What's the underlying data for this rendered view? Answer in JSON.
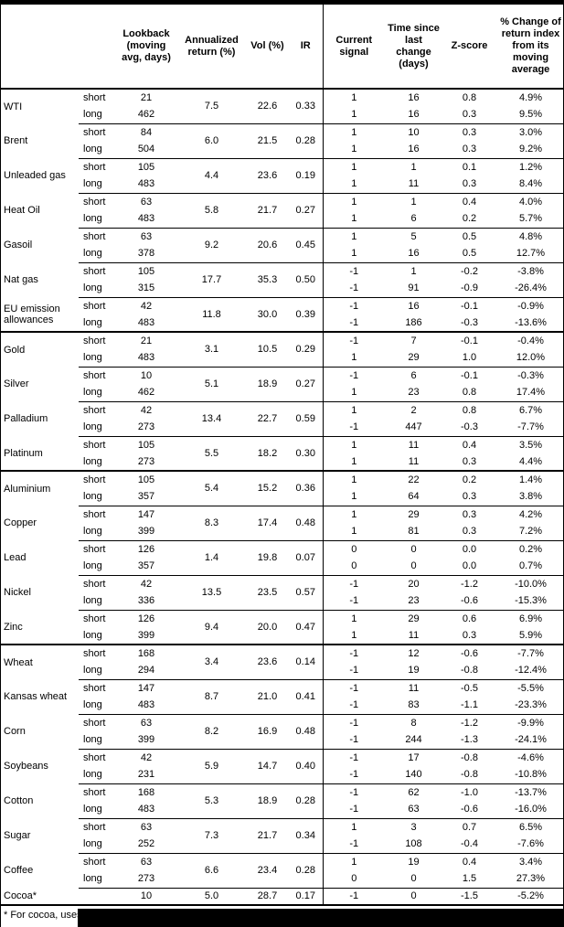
{
  "header": {
    "columns": [
      "",
      "",
      "Lookback (moving avg, days)",
      "Annualized return (%)",
      "Vol (%)",
      "IR",
      "Current signal",
      "Time since last change (days)",
      "Z-score",
      "% Change of return index from its moving average"
    ]
  },
  "footnote": "* For cocoa, uses",
  "colors": {
    "text": "#000000",
    "rule": "#000000",
    "background": "#ffffff",
    "redaction": "#000000"
  },
  "commodities": [
    {
      "name": "WTI",
      "section_start": false,
      "annualized_return": "7.5",
      "vol": "22.6",
      "ir": "0.33",
      "rows": [
        {
          "side": "short",
          "lookback": "21",
          "signal": "1",
          "time_since": "16",
          "z_score": "0.8",
          "pct_change": "4.9%"
        },
        {
          "side": "long",
          "lookback": "462",
          "signal": "1",
          "time_since": "16",
          "z_score": "0.3",
          "pct_change": "9.5%"
        }
      ]
    },
    {
      "name": "Brent",
      "section_start": false,
      "annualized_return": "6.0",
      "vol": "21.5",
      "ir": "0.28",
      "rows": [
        {
          "side": "short",
          "lookback": "84",
          "signal": "1",
          "time_since": "10",
          "z_score": "0.3",
          "pct_change": "3.0%"
        },
        {
          "side": "long",
          "lookback": "504",
          "signal": "1",
          "time_since": "16",
          "z_score": "0.3",
          "pct_change": "9.2%"
        }
      ]
    },
    {
      "name": "Unleaded gas",
      "section_start": false,
      "annualized_return": "4.4",
      "vol": "23.6",
      "ir": "0.19",
      "rows": [
        {
          "side": "short",
          "lookback": "105",
          "signal": "1",
          "time_since": "1",
          "z_score": "0.1",
          "pct_change": "1.2%"
        },
        {
          "side": "long",
          "lookback": "483",
          "signal": "1",
          "time_since": "11",
          "z_score": "0.3",
          "pct_change": "8.4%"
        }
      ]
    },
    {
      "name": "Heat Oil",
      "section_start": false,
      "annualized_return": "5.8",
      "vol": "21.7",
      "ir": "0.27",
      "rows": [
        {
          "side": "short",
          "lookback": "63",
          "signal": "1",
          "time_since": "1",
          "z_score": "0.4",
          "pct_change": "4.0%"
        },
        {
          "side": "long",
          "lookback": "483",
          "signal": "1",
          "time_since": "6",
          "z_score": "0.2",
          "pct_change": "5.7%"
        }
      ]
    },
    {
      "name": "Gasoil",
      "section_start": false,
      "annualized_return": "9.2",
      "vol": "20.6",
      "ir": "0.45",
      "rows": [
        {
          "side": "short",
          "lookback": "63",
          "signal": "1",
          "time_since": "5",
          "z_score": "0.5",
          "pct_change": "4.8%"
        },
        {
          "side": "long",
          "lookback": "378",
          "signal": "1",
          "time_since": "16",
          "z_score": "0.5",
          "pct_change": "12.7%"
        }
      ]
    },
    {
      "name": "Nat gas",
      "section_start": false,
      "annualized_return": "17.7",
      "vol": "35.3",
      "ir": "0.50",
      "rows": [
        {
          "side": "short",
          "lookback": "105",
          "signal": "-1",
          "time_since": "1",
          "z_score": "-0.2",
          "pct_change": "-3.8%"
        },
        {
          "side": "long",
          "lookback": "315",
          "signal": "-1",
          "time_since": "91",
          "z_score": "-0.9",
          "pct_change": "-26.4%"
        }
      ]
    },
    {
      "name": "EU emission allowances",
      "section_start": false,
      "annualized_return": "11.8",
      "vol": "30.0",
      "ir": "0.39",
      "rows": [
        {
          "side": "short",
          "lookback": "42",
          "signal": "-1",
          "time_since": "16",
          "z_score": "-0.1",
          "pct_change": "-0.9%"
        },
        {
          "side": "long",
          "lookback": "483",
          "signal": "-1",
          "time_since": "186",
          "z_score": "-0.3",
          "pct_change": "-13.6%"
        }
      ]
    },
    {
      "name": "Gold",
      "section_start": true,
      "annualized_return": "3.1",
      "vol": "10.5",
      "ir": "0.29",
      "rows": [
        {
          "side": "short",
          "lookback": "21",
          "signal": "-1",
          "time_since": "7",
          "z_score": "-0.1",
          "pct_change": "-0.4%"
        },
        {
          "side": "long",
          "lookback": "483",
          "signal": "1",
          "time_since": "29",
          "z_score": "1.0",
          "pct_change": "12.0%"
        }
      ]
    },
    {
      "name": "Silver",
      "section_start": false,
      "annualized_return": "5.1",
      "vol": "18.9",
      "ir": "0.27",
      "rows": [
        {
          "side": "short",
          "lookback": "10",
          "signal": "-1",
          "time_since": "6",
          "z_score": "-0.1",
          "pct_change": "-0.3%"
        },
        {
          "side": "long",
          "lookback": "462",
          "signal": "1",
          "time_since": "23",
          "z_score": "0.8",
          "pct_change": "17.4%"
        }
      ]
    },
    {
      "name": "Palladium",
      "section_start": false,
      "annualized_return": "13.4",
      "vol": "22.7",
      "ir": "0.59",
      "rows": [
        {
          "side": "short",
          "lookback": "42",
          "signal": "1",
          "time_since": "2",
          "z_score": "0.8",
          "pct_change": "6.7%"
        },
        {
          "side": "long",
          "lookback": "273",
          "signal": "-1",
          "time_since": "447",
          "z_score": "-0.3",
          "pct_change": "-7.7%"
        }
      ]
    },
    {
      "name": "Platinum",
      "section_start": false,
      "annualized_return": "5.5",
      "vol": "18.2",
      "ir": "0.30",
      "rows": [
        {
          "side": "short",
          "lookback": "105",
          "signal": "1",
          "time_since": "11",
          "z_score": "0.4",
          "pct_change": "3.5%"
        },
        {
          "side": "long",
          "lookback": "273",
          "signal": "1",
          "time_since": "11",
          "z_score": "0.3",
          "pct_change": "4.4%"
        }
      ]
    },
    {
      "name": "Aluminium",
      "section_start": true,
      "annualized_return": "5.4",
      "vol": "15.2",
      "ir": "0.36",
      "rows": [
        {
          "side": "short",
          "lookback": "105",
          "signal": "1",
          "time_since": "22",
          "z_score": "0.2",
          "pct_change": "1.4%"
        },
        {
          "side": "long",
          "lookback": "357",
          "signal": "1",
          "time_since": "64",
          "z_score": "0.3",
          "pct_change": "3.8%"
        }
      ]
    },
    {
      "name": "Copper",
      "section_start": false,
      "annualized_return": "8.3",
      "vol": "17.4",
      "ir": "0.48",
      "rows": [
        {
          "side": "short",
          "lookback": "147",
          "signal": "1",
          "time_since": "29",
          "z_score": "0.3",
          "pct_change": "4.2%"
        },
        {
          "side": "long",
          "lookback": "399",
          "signal": "1",
          "time_since": "81",
          "z_score": "0.3",
          "pct_change": "7.2%"
        }
      ]
    },
    {
      "name": "Lead",
      "section_start": false,
      "annualized_return": "1.4",
      "vol": "19.8",
      "ir": "0.07",
      "rows": [
        {
          "side": "short",
          "lookback": "126",
          "signal": "0",
          "time_since": "0",
          "z_score": "0.0",
          "pct_change": "0.2%"
        },
        {
          "side": "long",
          "lookback": "357",
          "signal": "0",
          "time_since": "0",
          "z_score": "0.0",
          "pct_change": "0.7%"
        }
      ]
    },
    {
      "name": "Nickel",
      "section_start": false,
      "annualized_return": "13.5",
      "vol": "23.5",
      "ir": "0.57",
      "rows": [
        {
          "side": "short",
          "lookback": "42",
          "signal": "-1",
          "time_since": "20",
          "z_score": "-1.2",
          "pct_change": "-10.0%"
        },
        {
          "side": "long",
          "lookback": "336",
          "signal": "-1",
          "time_since": "23",
          "z_score": "-0.6",
          "pct_change": "-15.3%"
        }
      ]
    },
    {
      "name": "Zinc",
      "section_start": false,
      "annualized_return": "9.4",
      "vol": "20.0",
      "ir": "0.47",
      "rows": [
        {
          "side": "short",
          "lookback": "126",
          "signal": "1",
          "time_since": "29",
          "z_score": "0.6",
          "pct_change": "6.9%"
        },
        {
          "side": "long",
          "lookback": "399",
          "signal": "1",
          "time_since": "11",
          "z_score": "0.3",
          "pct_change": "5.9%"
        }
      ]
    },
    {
      "name": "Wheat",
      "section_start": true,
      "annualized_return": "3.4",
      "vol": "23.6",
      "ir": "0.14",
      "rows": [
        {
          "side": "short",
          "lookback": "168",
          "signal": "-1",
          "time_since": "12",
          "z_score": "-0.6",
          "pct_change": "-7.7%"
        },
        {
          "side": "long",
          "lookback": "294",
          "signal": "-1",
          "time_since": "19",
          "z_score": "-0.8",
          "pct_change": "-12.4%"
        }
      ]
    },
    {
      "name": "Kansas wheat",
      "section_start": false,
      "annualized_return": "8.7",
      "vol": "21.0",
      "ir": "0.41",
      "rows": [
        {
          "side": "short",
          "lookback": "147",
          "signal": "-1",
          "time_since": "11",
          "z_score": "-0.5",
          "pct_change": "-5.5%"
        },
        {
          "side": "long",
          "lookback": "483",
          "signal": "-1",
          "time_since": "83",
          "z_score": "-1.1",
          "pct_change": "-23.3%"
        }
      ]
    },
    {
      "name": "Corn",
      "section_start": false,
      "annualized_return": "8.2",
      "vol": "16.9",
      "ir": "0.48",
      "rows": [
        {
          "side": "short",
          "lookback": "63",
          "signal": "-1",
          "time_since": "8",
          "z_score": "-1.2",
          "pct_change": "-9.9%"
        },
        {
          "side": "long",
          "lookback": "399",
          "signal": "-1",
          "time_since": "244",
          "z_score": "-1.3",
          "pct_change": "-24.1%"
        }
      ]
    },
    {
      "name": "Soybeans",
      "section_start": false,
      "annualized_return": "5.9",
      "vol": "14.7",
      "ir": "0.40",
      "rows": [
        {
          "side": "short",
          "lookback": "42",
          "signal": "-1",
          "time_since": "17",
          "z_score": "-0.8",
          "pct_change": "-4.6%"
        },
        {
          "side": "long",
          "lookback": "231",
          "signal": "-1",
          "time_since": "140",
          "z_score": "-0.8",
          "pct_change": "-10.8%"
        }
      ]
    },
    {
      "name": "Cotton",
      "section_start": false,
      "annualized_return": "5.3",
      "vol": "18.9",
      "ir": "0.28",
      "rows": [
        {
          "side": "short",
          "lookback": "168",
          "signal": "-1",
          "time_since": "62",
          "z_score": "-1.0",
          "pct_change": "-13.7%"
        },
        {
          "side": "long",
          "lookback": "483",
          "signal": "-1",
          "time_since": "63",
          "z_score": "-0.6",
          "pct_change": "-16.0%"
        }
      ]
    },
    {
      "name": "Sugar",
      "section_start": false,
      "annualized_return": "7.3",
      "vol": "21.7",
      "ir": "0.34",
      "rows": [
        {
          "side": "short",
          "lookback": "63",
          "signal": "1",
          "time_since": "3",
          "z_score": "0.7",
          "pct_change": "6.5%"
        },
        {
          "side": "long",
          "lookback": "252",
          "signal": "-1",
          "time_since": "108",
          "z_score": "-0.4",
          "pct_change": "-7.6%"
        }
      ]
    },
    {
      "name": "Coffee",
      "section_start": false,
      "annualized_return": "6.6",
      "vol": "23.4",
      "ir": "0.28",
      "rows": [
        {
          "side": "short",
          "lookback": "63",
          "signal": "1",
          "time_since": "19",
          "z_score": "0.4",
          "pct_change": "3.4%"
        },
        {
          "side": "long",
          "lookback": "273",
          "signal": "0",
          "time_since": "0",
          "z_score": "1.5",
          "pct_change": "27.3%"
        }
      ]
    },
    {
      "name": "Cocoa*",
      "section_start": false,
      "annualized_return": "5.0",
      "vol": "28.7",
      "ir": "0.17",
      "rows": [
        {
          "side": "",
          "lookback": "10",
          "signal": "-1",
          "time_since": "0",
          "z_score": "-1.5",
          "pct_change": "-5.2%"
        }
      ]
    }
  ]
}
